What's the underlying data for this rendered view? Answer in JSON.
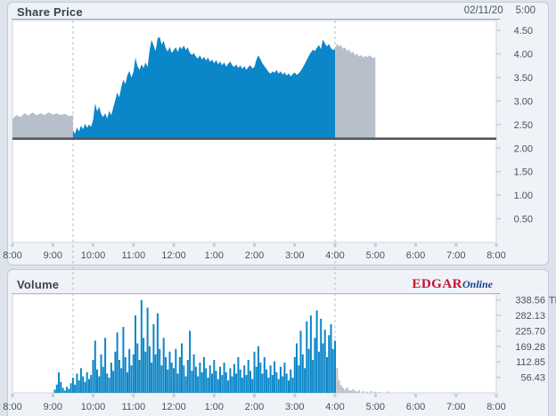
{
  "price_panel": {
    "title": "Share Price",
    "quote_date": "02/11/20",
    "quote_time": "5:00"
  },
  "volume_panel": {
    "title": "Volume",
    "logo_edgar": "EDGAR",
    "logo_online": "Online"
  },
  "colors": {
    "blue": "#0b86c8",
    "gray": "#b7bfca",
    "prev_close_line": "#54585e",
    "dashed": "#b9c1ca",
    "plot_bg": "#ffffff",
    "plot_border": "#cfd6dd",
    "axis_text": "#49525f",
    "tick_mark": "#c6ced6"
  },
  "chart_data": [
    {
      "type": "area",
      "title": "Share Price",
      "x_unit": "hour-of-day (8:00 AM to 8:00 PM)",
      "xlim": [
        8,
        20
      ],
      "ylim": [
        0,
        4.71
      ],
      "previous_close": 2.2,
      "session_markers": [
        9.5,
        16.0
      ],
      "x_ticks": [
        {
          "v": 8,
          "label": "8:00"
        },
        {
          "v": 9,
          "label": "9:00"
        },
        {
          "v": 10,
          "label": "10:00"
        },
        {
          "v": 11,
          "label": "11:00"
        },
        {
          "v": 12,
          "label": "12:00"
        },
        {
          "v": 13,
          "label": "1:00"
        },
        {
          "v": 14,
          "label": "2:00"
        },
        {
          "v": 15,
          "label": "3:00"
        },
        {
          "v": 16,
          "label": "4:00"
        },
        {
          "v": 17,
          "label": "5:00"
        },
        {
          "v": 18,
          "label": "6:00"
        },
        {
          "v": 19,
          "label": "7:00"
        },
        {
          "v": 20,
          "label": "8:00"
        }
      ],
      "y_ticks": [
        {
          "v": 4.5,
          "label": "4.50"
        },
        {
          "v": 4.0,
          "label": "4.00"
        },
        {
          "v": 3.5,
          "label": "3.50"
        },
        {
          "v": 3.0,
          "label": "3.00"
        },
        {
          "v": 2.5,
          "label": "2.50"
        },
        {
          "v": 2.0,
          "label": "2.00"
        },
        {
          "v": 1.5,
          "label": "1.50"
        },
        {
          "v": 1.0,
          "label": "1.00"
        },
        {
          "v": 0.5,
          "label": "0.50"
        }
      ],
      "series": [
        {
          "name": "pre-market",
          "color_key": "gray",
          "start": 8.0,
          "step": 0.1,
          "values": [
            2.62,
            2.7,
            2.66,
            2.74,
            2.69,
            2.76,
            2.7,
            2.74,
            2.7,
            2.76,
            2.71,
            2.74,
            2.7,
            2.73,
            2.68,
            2.7
          ]
        },
        {
          "name": "regular-session",
          "color_key": "blue",
          "start": 9.5,
          "step": 0.05,
          "values": [
            2.38,
            2.3,
            2.44,
            2.35,
            2.48,
            2.4,
            2.52,
            2.43,
            2.5,
            2.45,
            2.6,
            2.95,
            2.78,
            2.88,
            2.72,
            2.66,
            2.74,
            2.63,
            2.79,
            2.7,
            2.86,
            3.02,
            3.18,
            3.08,
            3.3,
            3.45,
            3.36,
            3.55,
            3.64,
            3.5,
            3.62,
            3.92,
            3.74,
            3.66,
            3.78,
            3.7,
            3.82,
            3.72,
            4.08,
            4.3,
            4.18,
            4.06,
            4.33,
            4.36,
            4.2,
            4.28,
            4.12,
            4.05,
            4.15,
            4.02,
            4.08,
            4.14,
            4.04,
            4.16,
            4.1,
            4.18,
            4.08,
            4.14,
            4.02,
            3.98,
            4.02,
            3.94,
            3.9,
            3.97,
            3.88,
            3.94,
            3.86,
            3.92,
            3.83,
            3.88,
            3.8,
            3.87,
            3.78,
            3.84,
            3.76,
            3.82,
            3.73,
            3.79,
            3.84,
            3.76,
            3.72,
            3.78,
            3.7,
            3.76,
            3.68,
            3.74,
            3.66,
            3.72,
            3.76,
            3.69,
            3.72,
            3.88,
            3.97,
            3.89,
            3.8,
            3.74,
            3.68,
            3.62,
            3.58,
            3.63,
            3.6,
            3.66,
            3.58,
            3.63,
            3.56,
            3.61,
            3.54,
            3.59,
            3.52,
            3.57,
            3.61,
            3.55,
            3.59,
            3.64,
            3.71,
            3.79,
            3.87,
            3.96,
            4.03,
            4.09,
            4.06,
            4.13,
            4.19,
            4.1,
            4.31,
            4.22,
            4.16,
            4.21,
            4.12,
            4.08,
            4.1
          ]
        },
        {
          "name": "after-hours",
          "color_key": "gray",
          "start": 16.0,
          "step": 0.05,
          "values": [
            4.12,
            4.22,
            4.16,
            4.19,
            4.11,
            4.14,
            4.06,
            4.1,
            4.02,
            4.05,
            3.97,
            4.01,
            3.94,
            3.98,
            3.92,
            3.96,
            3.93,
            3.97,
            3.94,
            3.91,
            3.94
          ]
        }
      ]
    },
    {
      "type": "bar",
      "title": "Volume",
      "unit": "Th",
      "xlim": [
        8,
        20
      ],
      "ylim": [
        0,
        360
      ],
      "session_markers": [
        9.5,
        16.0
      ],
      "x_ticks": [
        {
          "v": 8,
          "label": "8:00"
        },
        {
          "v": 9,
          "label": "9:00"
        },
        {
          "v": 10,
          "label": "10:00"
        },
        {
          "v": 11,
          "label": "11:00"
        },
        {
          "v": 12,
          "label": "12:00"
        },
        {
          "v": 13,
          "label": "1:00"
        },
        {
          "v": 14,
          "label": "2:00"
        },
        {
          "v": 15,
          "label": "3:00"
        },
        {
          "v": 16,
          "label": "4:00"
        },
        {
          "v": 17,
          "label": "5:00"
        },
        {
          "v": 18,
          "label": "6:00"
        },
        {
          "v": 19,
          "label": "7:00"
        },
        {
          "v": 20,
          "label": "8:00"
        }
      ],
      "y_ticks": [
        {
          "v": 338.56,
          "label": "338.56",
          "unit": "Th"
        },
        {
          "v": 282.13,
          "label": "282.13"
        },
        {
          "v": 225.7,
          "label": "225.70"
        },
        {
          "v": 169.28,
          "label": "169.28"
        },
        {
          "v": 112.85,
          "label": "112.85"
        },
        {
          "v": 56.43,
          "label": "56.43"
        }
      ],
      "series": [
        {
          "name": "pre-market",
          "color_key": "blue",
          "bars": [
            [
              9.05,
              12
            ],
            [
              9.1,
              30
            ],
            [
              9.15,
              75
            ],
            [
              9.2,
              40
            ],
            [
              9.25,
              18
            ],
            [
              9.3,
              8
            ],
            [
              9.35,
              22
            ],
            [
              9.4,
              14
            ],
            [
              9.45,
              35
            ]
          ]
        },
        {
          "name": "regular-session",
          "color_key": "blue",
          "start": 9.5,
          "step": 0.05,
          "values": [
            55,
            30,
            70,
            45,
            90,
            60,
            40,
            75,
            50,
            65,
            120,
            190,
            85,
            60,
            140,
            95,
            200,
            70,
            55,
            110,
            80,
            150,
            220,
            120,
            90,
            240,
            130,
            75,
            160,
            100,
            140,
            282,
            180,
            120,
            338,
            200,
            150,
            310,
            170,
            110,
            250,
            140,
            290,
            160,
            100,
            200,
            130,
            85,
            150,
            110,
            90,
            160,
            70,
            130,
            180,
            100,
            60,
            120,
            226,
            80,
            140,
            95,
            60,
            110,
            75,
            130,
            90,
            55,
            100,
            70,
            120,
            80,
            50,
            95,
            65,
            110,
            75,
            45,
            90,
            60,
            105,
            70,
            130,
            85,
            55,
            100,
            65,
            120,
            80,
            50,
            150,
            95,
            170,
            110,
            70,
            130,
            85,
            55,
            100,
            65,
            115,
            75,
            50,
            95,
            60,
            110,
            70,
            45,
            85,
            55,
            130,
            180,
            100,
            226,
            140,
            90,
            260,
            160,
            282,
            120,
            200,
            300,
            150,
            270,
            180,
            230,
            130,
            210,
            250,
            160,
            190
          ]
        },
        {
          "name": "after-hours",
          "color_key": "gray",
          "bars": [
            [
              16.05,
              90
            ],
            [
              16.1,
              45
            ],
            [
              16.15,
              28
            ],
            [
              16.2,
              18
            ],
            [
              16.25,
              12
            ],
            [
              16.3,
              20
            ],
            [
              16.35,
              10
            ],
            [
              16.4,
              8
            ],
            [
              16.45,
              14
            ],
            [
              16.5,
              7
            ],
            [
              16.55,
              5
            ],
            [
              16.6,
              9
            ],
            [
              16.7,
              6
            ],
            [
              16.8,
              4
            ],
            [
              16.9,
              7
            ],
            [
              17.0,
              4
            ],
            [
              17.1,
              3
            ],
            [
              17.3,
              5
            ]
          ]
        }
      ]
    }
  ]
}
